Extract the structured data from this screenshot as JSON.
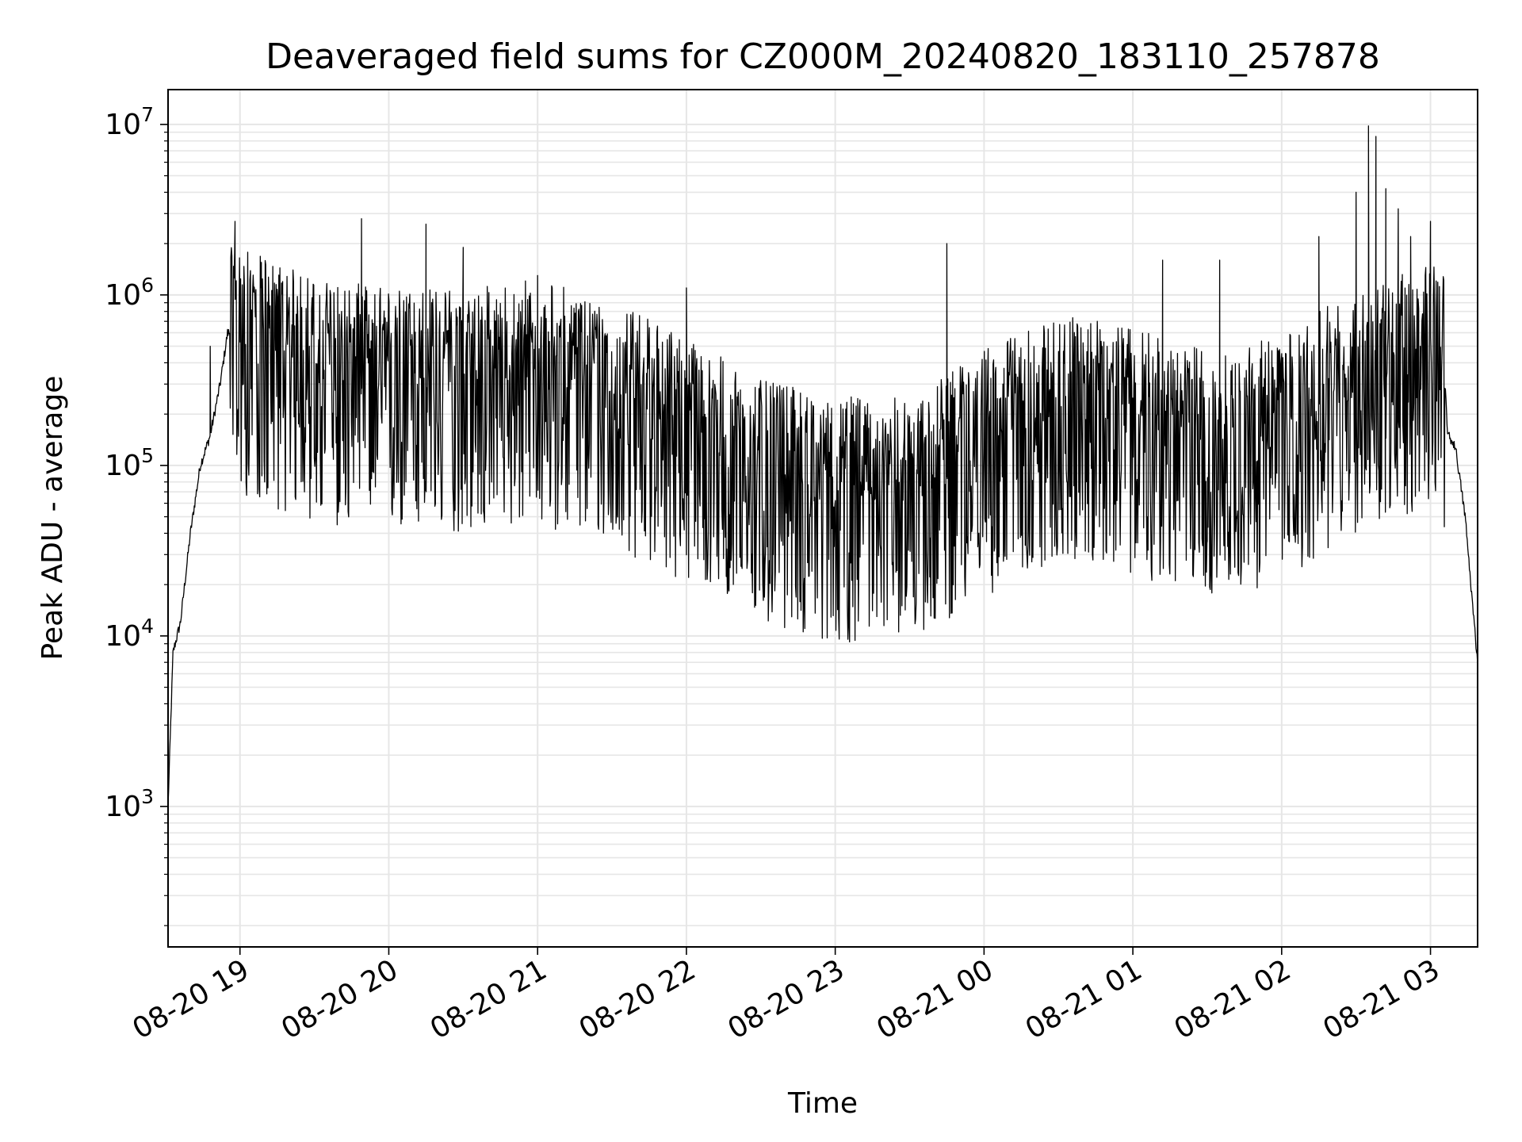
{
  "chart_data": {
    "type": "line",
    "title": "Deaveraged field sums for CZ000M_20240820_183110_257878",
    "xlabel": "Time",
    "ylabel": "Peak ADU - average",
    "yscale": "log",
    "ylim": [
      150,
      16000000
    ],
    "xlim": [
      "2024-08-20 18:31",
      "2024-08-21 03:19"
    ],
    "grid": true,
    "line_color": "#000000",
    "grid_color": "#e6e6e6",
    "x_ticks": [
      {
        "value": "2024-08-20 19:00",
        "label": "08-20 19"
      },
      {
        "value": "2024-08-20 20:00",
        "label": "08-20 20"
      },
      {
        "value": "2024-08-20 21:00",
        "label": "08-20 21"
      },
      {
        "value": "2024-08-20 22:00",
        "label": "08-20 22"
      },
      {
        "value": "2024-08-20 23:00",
        "label": "08-20 23"
      },
      {
        "value": "2024-08-21 00:00",
        "label": "08-21 00"
      },
      {
        "value": "2024-08-21 01:00",
        "label": "08-21 01"
      },
      {
        "value": "2024-08-21 02:00",
        "label": "08-21 02"
      },
      {
        "value": "2024-08-21 03:00",
        "label": "08-21 03"
      }
    ],
    "y_ticks": [
      {
        "value": 1000,
        "base": "10",
        "exp": "3"
      },
      {
        "value": 10000,
        "base": "10",
        "exp": "4"
      },
      {
        "value": 100000,
        "base": "10",
        "exp": "5"
      },
      {
        "value": 1000000,
        "base": "10",
        "exp": "6"
      },
      {
        "value": 10000000,
        "base": "10",
        "exp": "7"
      }
    ],
    "series": [
      {
        "style": "dense-noisy-line",
        "trend": [
          {
            "t": "2024-08-20 18:31",
            "value": 1000
          },
          {
            "t": "2024-08-20 18:33",
            "value": 8000
          },
          {
            "t": "2024-08-20 18:36",
            "value": 12000
          },
          {
            "t": "2024-08-20 18:40",
            "value": 40000
          },
          {
            "t": "2024-08-20 18:44",
            "value": 100000
          },
          {
            "t": "2024-08-20 18:48",
            "value": 150000
          },
          {
            "t": "2024-08-20 18:52",
            "value": 300000
          },
          {
            "t": "2024-08-20 18:55",
            "value": 600000
          },
          {
            "t": "2024-08-20 19:00",
            "value": 600000
          },
          {
            "t": "2024-08-20 19:30",
            "value": 400000
          },
          {
            "t": "2024-08-20 20:00",
            "value": 350000
          },
          {
            "t": "2024-08-20 20:30",
            "value": 350000
          },
          {
            "t": "2024-08-20 21:00",
            "value": 400000
          },
          {
            "t": "2024-08-20 21:30",
            "value": 300000
          },
          {
            "t": "2024-08-20 22:00",
            "value": 180000
          },
          {
            "t": "2024-08-20 22:30",
            "value": 100000
          },
          {
            "t": "2024-08-20 23:00",
            "value": 80000
          },
          {
            "t": "2024-08-20 23:30",
            "value": 80000
          },
          {
            "t": "2024-08-21 00:00",
            "value": 150000
          },
          {
            "t": "2024-08-21 00:30",
            "value": 250000
          },
          {
            "t": "2024-08-21 01:00",
            "value": 200000
          },
          {
            "t": "2024-08-21 01:30",
            "value": 150000
          },
          {
            "t": "2024-08-21 02:00",
            "value": 180000
          },
          {
            "t": "2024-08-21 02:30",
            "value": 350000
          },
          {
            "t": "2024-08-21 02:50",
            "value": 450000
          },
          {
            "t": "2024-08-21 03:05",
            "value": 500000
          },
          {
            "t": "2024-08-21 03:07",
            "value": 150000
          },
          {
            "t": "2024-08-21 03:10",
            "value": 130000
          },
          {
            "t": "2024-08-21 03:14",
            "value": 50000
          },
          {
            "t": "2024-08-21 03:17",
            "value": 15000
          },
          {
            "t": "2024-08-21 03:19",
            "value": 7000
          }
        ],
        "spikes": [
          {
            "t": "2024-08-20 18:48",
            "value": 500000
          },
          {
            "t": "2024-08-20 18:58",
            "value": 2700000
          },
          {
            "t": "2024-08-20 19:49",
            "value": 2800000
          },
          {
            "t": "2024-08-20 20:15",
            "value": 2600000
          },
          {
            "t": "2024-08-20 20:30",
            "value": 1900000
          },
          {
            "t": "2024-08-20 21:00",
            "value": 1300000
          },
          {
            "t": "2024-08-20 22:00",
            "value": 1100000
          },
          {
            "t": "2024-08-20 23:45",
            "value": 2000000
          },
          {
            "t": "2024-08-21 01:12",
            "value": 1600000
          },
          {
            "t": "2024-08-21 01:35",
            "value": 1600000
          },
          {
            "t": "2024-08-21 02:15",
            "value": 2200000
          },
          {
            "t": "2024-08-21 02:30",
            "value": 4000000
          },
          {
            "t": "2024-08-21 02:35",
            "value": 9800000
          },
          {
            "t": "2024-08-21 02:38",
            "value": 8500000
          },
          {
            "t": "2024-08-21 02:42",
            "value": 4200000
          },
          {
            "t": "2024-08-21 02:47",
            "value": 3200000
          },
          {
            "t": "2024-08-21 02:52",
            "value": 2200000
          },
          {
            "t": "2024-08-21 03:00",
            "value": 2700000
          }
        ],
        "dips": [
          {
            "t": "2024-08-20 22:07",
            "value": 28000
          },
          {
            "t": "2024-08-20 22:35",
            "value": 30000
          },
          {
            "t": "2024-08-20 23:10",
            "value": 29000
          },
          {
            "t": "2024-08-20 23:40",
            "value": 30000
          },
          {
            "t": "2024-08-21 00:08",
            "value": 32000
          },
          {
            "t": "2024-08-21 01:30",
            "value": 36000
          }
        ]
      }
    ]
  }
}
